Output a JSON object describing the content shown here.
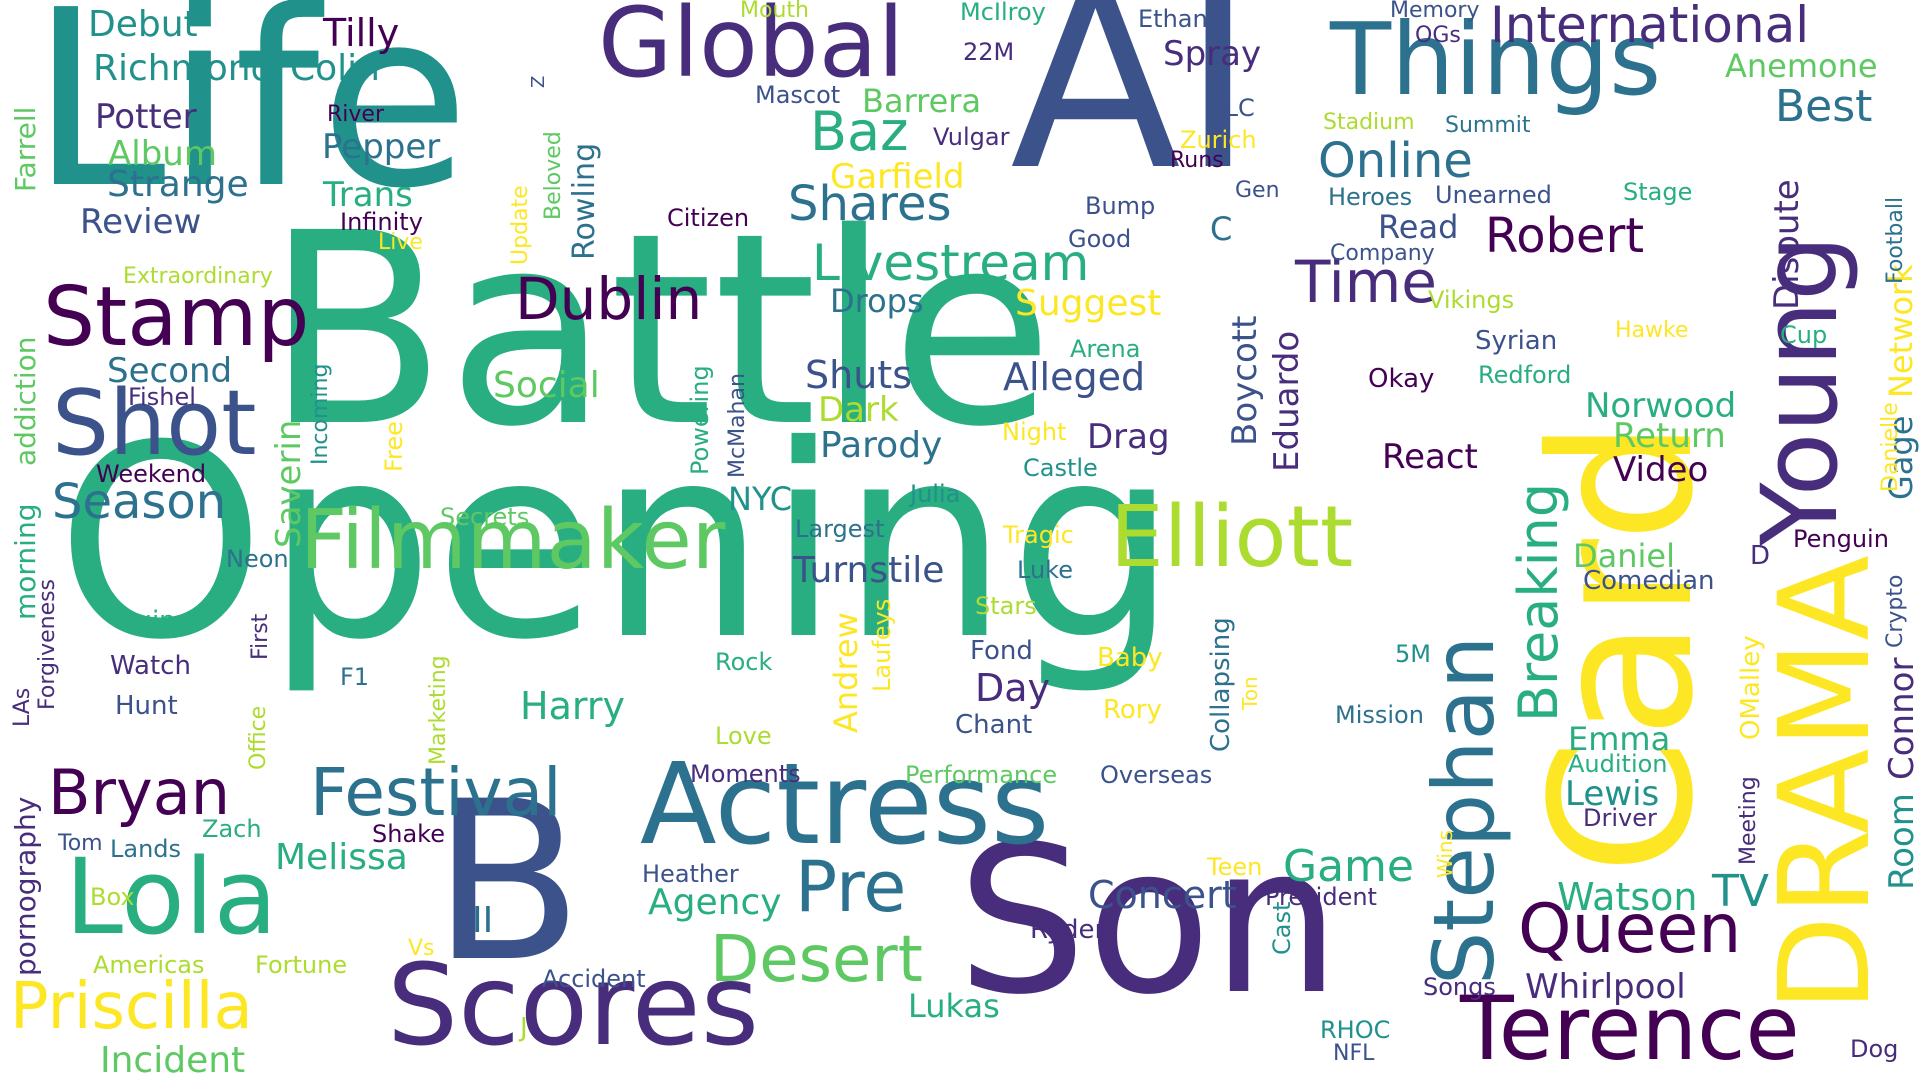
{
  "palette": {
    "purple": "#440154",
    "indigo": "#472d7b",
    "blue": "#3b528b",
    "slate": "#2c728e",
    "teal": "#21918c",
    "green": "#28ae80",
    "emerald": "#5ec962",
    "lime": "#addc30",
    "yellow": "#fde725"
  },
  "words": [
    {
      "text": "Battle",
      "color": "green"
    },
    {
      "text": "Opening",
      "color": "green"
    },
    {
      "text": "Life",
      "color": "teal"
    },
    {
      "text": "AI",
      "color": "blue"
    },
    {
      "text": "Card",
      "color": "yellow"
    },
    {
      "text": "Son",
      "color": "indigo"
    },
    {
      "text": "B",
      "color": "blue"
    },
    {
      "text": "DRAMA",
      "color": "yellow"
    },
    {
      "text": "Young",
      "color": "indigo"
    },
    {
      "text": "Actress",
      "color": "slate"
    },
    {
      "text": "Scores",
      "color": "indigo"
    },
    {
      "text": "Global",
      "color": "indigo"
    },
    {
      "text": "Things",
      "color": "slate"
    },
    {
      "text": "Elliott",
      "color": "lime"
    },
    {
      "text": "Filmmaker",
      "color": "emerald"
    },
    {
      "text": "Stephan",
      "color": "slate"
    },
    {
      "text": "Terence",
      "color": "purple"
    },
    {
      "text": "Lola",
      "color": "green"
    },
    {
      "text": "Shot",
      "color": "blue"
    },
    {
      "text": "Stamp",
      "color": "purple"
    },
    {
      "text": "Priscilla",
      "color": "yellow"
    },
    {
      "text": "Bryan",
      "color": "purple"
    },
    {
      "text": "Festival",
      "color": "slate"
    },
    {
      "text": "Desert",
      "color": "emerald"
    },
    {
      "text": "Pre",
      "color": "slate"
    },
    {
      "text": "Queen",
      "color": "purple"
    },
    {
      "text": "Breaking",
      "color": "green"
    },
    {
      "text": "Dublin",
      "color": "purple"
    },
    {
      "text": "International",
      "color": "indigo"
    },
    {
      "text": "Time",
      "color": "indigo"
    },
    {
      "text": "Robert",
      "color": "purple"
    },
    {
      "text": "Online",
      "color": "slate"
    },
    {
      "text": "Baz",
      "color": "green"
    },
    {
      "text": "Livestream",
      "color": "green"
    },
    {
      "text": "Shares",
      "color": "slate"
    },
    {
      "text": "Best",
      "color": "slate"
    },
    {
      "text": "Dispute",
      "color": "indigo"
    },
    {
      "text": "Network",
      "color": "yellow"
    },
    {
      "text": "Gage",
      "color": "slate"
    },
    {
      "text": "Room",
      "color": "teal"
    },
    {
      "text": "Connor",
      "color": "indigo"
    },
    {
      "text": "Season",
      "color": "slate"
    },
    {
      "text": "Debut",
      "color": "teal"
    },
    {
      "text": "Richmond",
      "color": "teal"
    },
    {
      "text": "Colin",
      "color": "teal"
    },
    {
      "text": "Tilly",
      "color": "purple"
    },
    {
      "text": "Potter",
      "color": "indigo"
    },
    {
      "text": "Album",
      "color": "emerald"
    },
    {
      "text": "Strange",
      "color": "slate"
    },
    {
      "text": "Review",
      "color": "blue"
    },
    {
      "text": "Farrell",
      "color": "emerald"
    },
    {
      "text": "Second",
      "color": "slate"
    },
    {
      "text": "Pepper",
      "color": "slate"
    },
    {
      "text": "Trans",
      "color": "green"
    },
    {
      "text": "Infinity",
      "color": "purple"
    },
    {
      "text": "Rowling",
      "color": "slate"
    },
    {
      "text": "Garfield",
      "color": "yellow"
    },
    {
      "text": "Barrera",
      "color": "emerald"
    },
    {
      "text": "Spray",
      "color": "indigo"
    },
    {
      "text": "Anemone",
      "color": "emerald"
    },
    {
      "text": "Suggest",
      "color": "yellow"
    },
    {
      "text": "Drops",
      "color": "slate"
    },
    {
      "text": "Alleged",
      "color": "blue"
    },
    {
      "text": "Shuts",
      "color": "blue"
    },
    {
      "text": "Dark",
      "color": "lime"
    },
    {
      "text": "Parody",
      "color": "slate"
    },
    {
      "text": "Social",
      "color": "emerald"
    },
    {
      "text": "Turnstile",
      "color": "blue"
    },
    {
      "text": "Harry",
      "color": "green"
    },
    {
      "text": "Day",
      "color": "indigo"
    },
    {
      "text": "Drag",
      "color": "indigo"
    },
    {
      "text": "Boycott",
      "color": "blue"
    },
    {
      "text": "Eduardo",
      "color": "indigo"
    },
    {
      "text": "React",
      "color": "purple"
    },
    {
      "text": "Norwood",
      "color": "green"
    },
    {
      "text": "Return",
      "color": "emerald"
    },
    {
      "text": "Video",
      "color": "purple"
    },
    {
      "text": "Daniel",
      "color": "emerald"
    },
    {
      "text": "Comedian",
      "color": "blue"
    },
    {
      "text": "Melissa",
      "color": "green"
    },
    {
      "text": "Agency",
      "color": "green"
    },
    {
      "text": "Concert",
      "color": "blue"
    },
    {
      "text": "Game",
      "color": "green"
    },
    {
      "text": "Watson",
      "color": "green"
    },
    {
      "text": "TV",
      "color": "teal"
    },
    {
      "text": "Whirlpool",
      "color": "indigo"
    },
    {
      "text": "Lukas",
      "color": "green"
    },
    {
      "text": "Lewis",
      "color": "teal"
    },
    {
      "text": "Emma",
      "color": "green"
    },
    {
      "text": "Incident",
      "color": "emerald"
    },
    {
      "text": "Andrew",
      "color": "yellow"
    },
    {
      "text": "OMalley",
      "color": "yellow"
    },
    {
      "text": "Saverin",
      "color": "emerald"
    },
    {
      "text": "morning",
      "color": "green"
    },
    {
      "text": "addiction",
      "color": "emerald"
    },
    {
      "text": "pornography",
      "color": "indigo"
    },
    {
      "text": "Citizen",
      "color": "purple"
    },
    {
      "text": "Ethan",
      "color": "blue"
    },
    {
      "text": "McIlroy",
      "color": "green"
    },
    {
      "text": "22M",
      "color": "indigo"
    },
    {
      "text": "Mascot",
      "color": "blue"
    },
    {
      "text": "Mouth",
      "color": "lime"
    },
    {
      "text": "Memory",
      "color": "blue"
    },
    {
      "text": "OGs",
      "color": "indigo"
    },
    {
      "text": "Z",
      "color": "blue"
    },
    {
      "text": "River",
      "color": "purple"
    },
    {
      "text": "Vulgar",
      "color": "indigo"
    },
    {
      "text": "TLC",
      "color": "blue"
    },
    {
      "text": "Zurich",
      "color": "yellow"
    },
    {
      "text": "Runs",
      "color": "purple"
    },
    {
      "text": "Gen",
      "color": "blue"
    },
    {
      "text": "Stadium",
      "color": "lime"
    },
    {
      "text": "Summit",
      "color": "slate"
    },
    {
      "text": "Heroes",
      "color": "slate"
    },
    {
      "text": "Unearned",
      "color": "blue"
    },
    {
      "text": "Stage",
      "color": "green"
    },
    {
      "text": "Read",
      "color": "blue"
    },
    {
      "text": "Company",
      "color": "blue"
    },
    {
      "text": "Bump",
      "color": "blue"
    },
    {
      "text": "Good",
      "color": "blue"
    },
    {
      "text": "C",
      "color": "slate"
    },
    {
      "text": "Football",
      "color": "slate"
    },
    {
      "text": "Vikings",
      "color": "lime"
    },
    {
      "text": "Syrian",
      "color": "blue"
    },
    {
      "text": "Hawke",
      "color": "yellow"
    },
    {
      "text": "Cup",
      "color": "green"
    },
    {
      "text": "Redford",
      "color": "green"
    },
    {
      "text": "Okay",
      "color": "purple"
    },
    {
      "text": "Danielle",
      "color": "yellow"
    },
    {
      "text": "Penguin",
      "color": "purple"
    },
    {
      "text": "Crypto",
      "color": "blue"
    },
    {
      "text": "D",
      "color": "indigo"
    },
    {
      "text": "Meeting",
      "color": "indigo"
    },
    {
      "text": "Audition",
      "color": "green"
    },
    {
      "text": "Driver",
      "color": "indigo"
    },
    {
      "text": "President",
      "color": "indigo"
    },
    {
      "text": "Songs",
      "color": "indigo"
    },
    {
      "text": "Dog",
      "color": "indigo"
    },
    {
      "text": "RHOC",
      "color": "teal"
    },
    {
      "text": "NFL",
      "color": "blue"
    },
    {
      "text": "Wins",
      "color": "yellow"
    },
    {
      "text": "Teen",
      "color": "yellow"
    },
    {
      "text": "Cast",
      "color": "teal"
    },
    {
      "text": "Ryder",
      "color": "indigo"
    },
    {
      "text": "Overseas",
      "color": "blue"
    },
    {
      "text": "Performance",
      "color": "emerald"
    },
    {
      "text": "Moments",
      "color": "indigo"
    },
    {
      "text": "Heather",
      "color": "blue"
    },
    {
      "text": "Accident",
      "color": "blue"
    },
    {
      "text": "II",
      "color": "slate"
    },
    {
      "text": "J",
      "color": "lime"
    },
    {
      "text": "Love",
      "color": "lime"
    },
    {
      "text": "Mission",
      "color": "slate"
    },
    {
      "text": "5M",
      "color": "teal"
    },
    {
      "text": "Ton",
      "color": "yellow"
    },
    {
      "text": "Collapsing",
      "color": "slate"
    },
    {
      "text": "Rory",
      "color": "yellow"
    },
    {
      "text": "Baby",
      "color": "yellow"
    },
    {
      "text": "Chant",
      "color": "blue"
    },
    {
      "text": "Fond",
      "color": "blue"
    },
    {
      "text": "Stars",
      "color": "lime"
    },
    {
      "text": "Luke",
      "color": "slate"
    },
    {
      "text": "Tragic",
      "color": "yellow"
    },
    {
      "text": "Night",
      "color": "yellow"
    },
    {
      "text": "Castle",
      "color": "teal"
    },
    {
      "text": "Arena",
      "color": "green"
    },
    {
      "text": "Largest",
      "color": "slate"
    },
    {
      "text": "Julia",
      "color": "teal"
    },
    {
      "text": "NYC",
      "color": "teal"
    },
    {
      "text": "Laufeys",
      "color": "yellow"
    },
    {
      "text": "Rock",
      "color": "green"
    },
    {
      "text": "Powering",
      "color": "green"
    },
    {
      "text": "McMahan",
      "color": "blue"
    },
    {
      "text": "Free",
      "color": "yellow"
    },
    {
      "text": "Incoming",
      "color": "teal"
    },
    {
      "text": "Secrets",
      "color": "emerald"
    },
    {
      "text": "Update",
      "color": "yellow"
    },
    {
      "text": "Beloved",
      "color": "emerald"
    },
    {
      "text": "Live",
      "color": "yellow"
    },
    {
      "text": "Extraordinary",
      "color": "lime"
    },
    {
      "text": "Fishel",
      "color": "indigo"
    },
    {
      "text": "Weekend",
      "color": "purple"
    },
    {
      "text": "Neon",
      "color": "slate"
    },
    {
      "text": "Forgiveness",
      "color": "indigo"
    },
    {
      "text": "First",
      "color": "indigo"
    },
    {
      "text": "Office",
      "color": "lime"
    },
    {
      "text": "Quinn",
      "color": "green"
    },
    {
      "text": "Watch",
      "color": "indigo"
    },
    {
      "text": "Hunt",
      "color": "blue"
    },
    {
      "text": "LAs",
      "color": "indigo"
    },
    {
      "text": "F1",
      "color": "slate"
    },
    {
      "text": "Marketing",
      "color": "lime"
    },
    {
      "text": "Zach",
      "color": "green"
    },
    {
      "text": "Shake",
      "color": "purple"
    },
    {
      "text": "Tom",
      "color": "blue"
    },
    {
      "text": "Lands",
      "color": "slate"
    },
    {
      "text": "Box",
      "color": "lime"
    },
    {
      "text": "Vs",
      "color": "yellow"
    },
    {
      "text": "Americas",
      "color": "lime"
    },
    {
      "text": "Fortune",
      "color": "lime"
    }
  ]
}
